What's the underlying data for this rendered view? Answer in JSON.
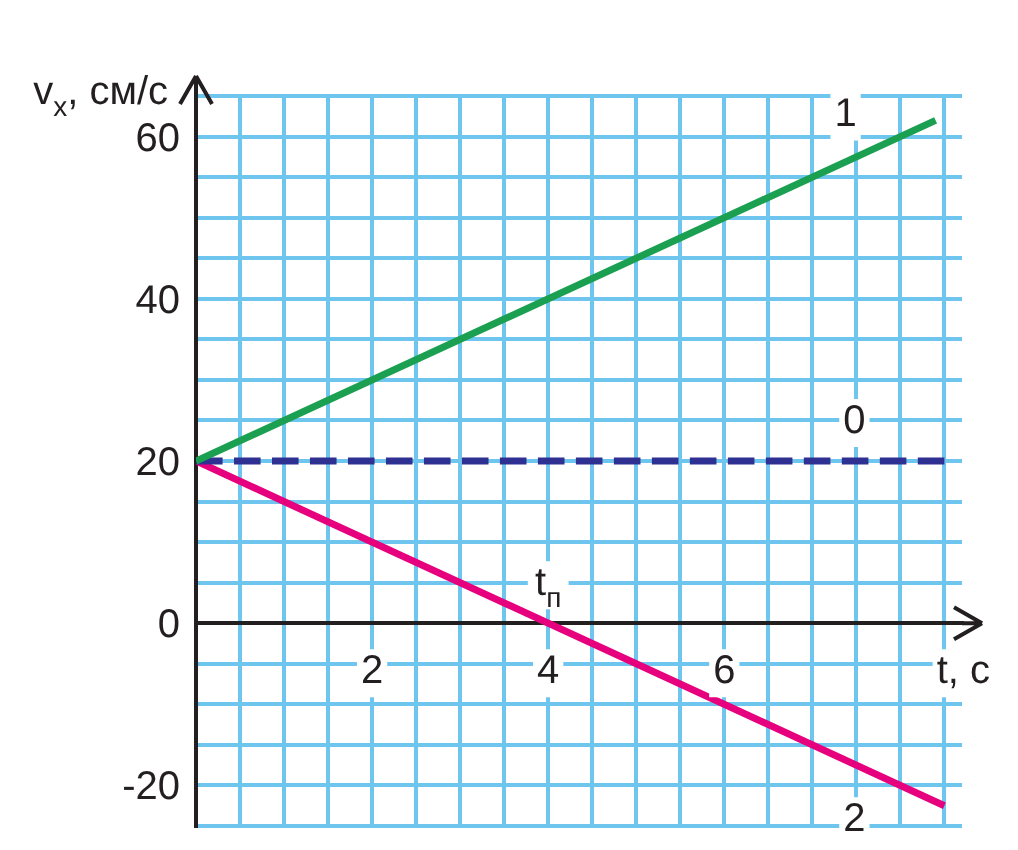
{
  "chart_data": {
    "type": "line",
    "xlabel": "t, с",
    "ylabel": "v$_{x}$, см/с",
    "xlim": [
      0,
      8.7
    ],
    "ylim": [
      -25,
      65
    ],
    "xticks": [
      {
        "value": 0,
        "label": null
      },
      {
        "value": 0.5,
        "label": null
      },
      {
        "value": 1,
        "label": null
      },
      {
        "value": 1.5,
        "label": null
      },
      2,
      {
        "value": 2.5,
        "label": null
      },
      {
        "value": 3,
        "label": null
      },
      {
        "value": 3.5,
        "label": null
      },
      4,
      {
        "value": 4.5,
        "label": null
      },
      {
        "value": 5,
        "label": null
      },
      {
        "value": 5.5,
        "label": null
      },
      6,
      {
        "value": 6.5,
        "label": null
      },
      {
        "value": 7,
        "label": null
      },
      {
        "value": 7.5,
        "label": null
      },
      {
        "value": 8,
        "label": null
      },
      {
        "value": 8.5,
        "label": null
      }
    ],
    "yticks": [
      {
        "value": -25,
        "label": null
      },
      -20,
      {
        "value": -15,
        "label": null
      },
      {
        "value": -10,
        "label": null
      },
      {
        "value": -5,
        "label": null
      },
      0,
      {
        "value": 5,
        "label": null
      },
      {
        "value": 10,
        "label": null
      },
      {
        "value": 15,
        "label": null
      },
      20,
      {
        "value": 25,
        "label": null
      },
      {
        "value": 30,
        "label": null
      },
      {
        "value": 35,
        "label": null
      },
      40,
      {
        "value": 45,
        "label": null
      },
      {
        "value": 50,
        "label": null
      },
      {
        "value": 55,
        "label": null
      },
      60,
      {
        "value": 65,
        "label": null
      }
    ],
    "grid": true,
    "marker": "none",
    "legend": false,
    "series": [
      {
        "name": "1",
        "color": "#1aa050",
        "x": [
          0,
          8.4
        ],
        "values": [
          20,
          62
        ],
        "line_style": "solid"
      },
      {
        "name": "0",
        "color": "#2e3192",
        "x": [
          0,
          8.5
        ],
        "values": [
          20,
          20
        ],
        "line_style": "dashed"
      },
      {
        "name": "2",
        "color": "#e6007e",
        "x": [
          0,
          8.5
        ],
        "values": [
          20,
          -22.5
        ],
        "line_style": "solid"
      }
    ],
    "annotations": [
      {
        "text": "t$_{п}$",
        "x": 4,
        "y": 0
      }
    ]
  }
}
